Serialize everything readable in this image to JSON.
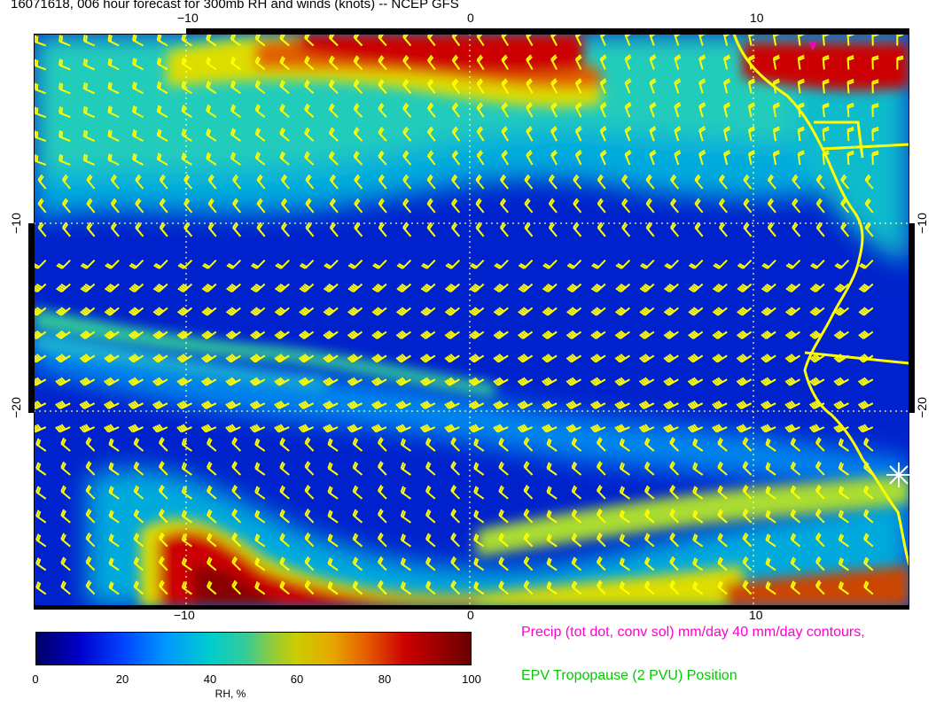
{
  "title": "16071618, 006 hour forecast for 300mb RH and winds (knots) -- NCEP GFS",
  "axes": {
    "top": [
      "−10",
      "0",
      "10"
    ],
    "bottom": [
      "−10",
      "0",
      "10"
    ],
    "left": [
      "−10",
      "−20"
    ],
    "right": [
      "−10",
      "−20"
    ]
  },
  "colorbar": {
    "ticks": [
      "0",
      "20",
      "40",
      "60",
      "80",
      "100"
    ],
    "units": "RH, %",
    "colors": [
      "#000066",
      "#0000cc",
      "#0044ff",
      "#0099ff",
      "#00cccc",
      "#99cc33",
      "#cccc00",
      "#e65c00",
      "#cc0000",
      "#660000"
    ]
  },
  "legend": {
    "precip": "Precip (tot dot, conv sol) mm/day 40 mm/day contours,",
    "epv": "EPV Tropopause (2 PVU) Position"
  },
  "colors": {
    "barb": "#ffff00",
    "coast": "#ffff00",
    "precip": "#ff00cc",
    "epv": "#00cc00",
    "grid": "#ffff66"
  }
}
